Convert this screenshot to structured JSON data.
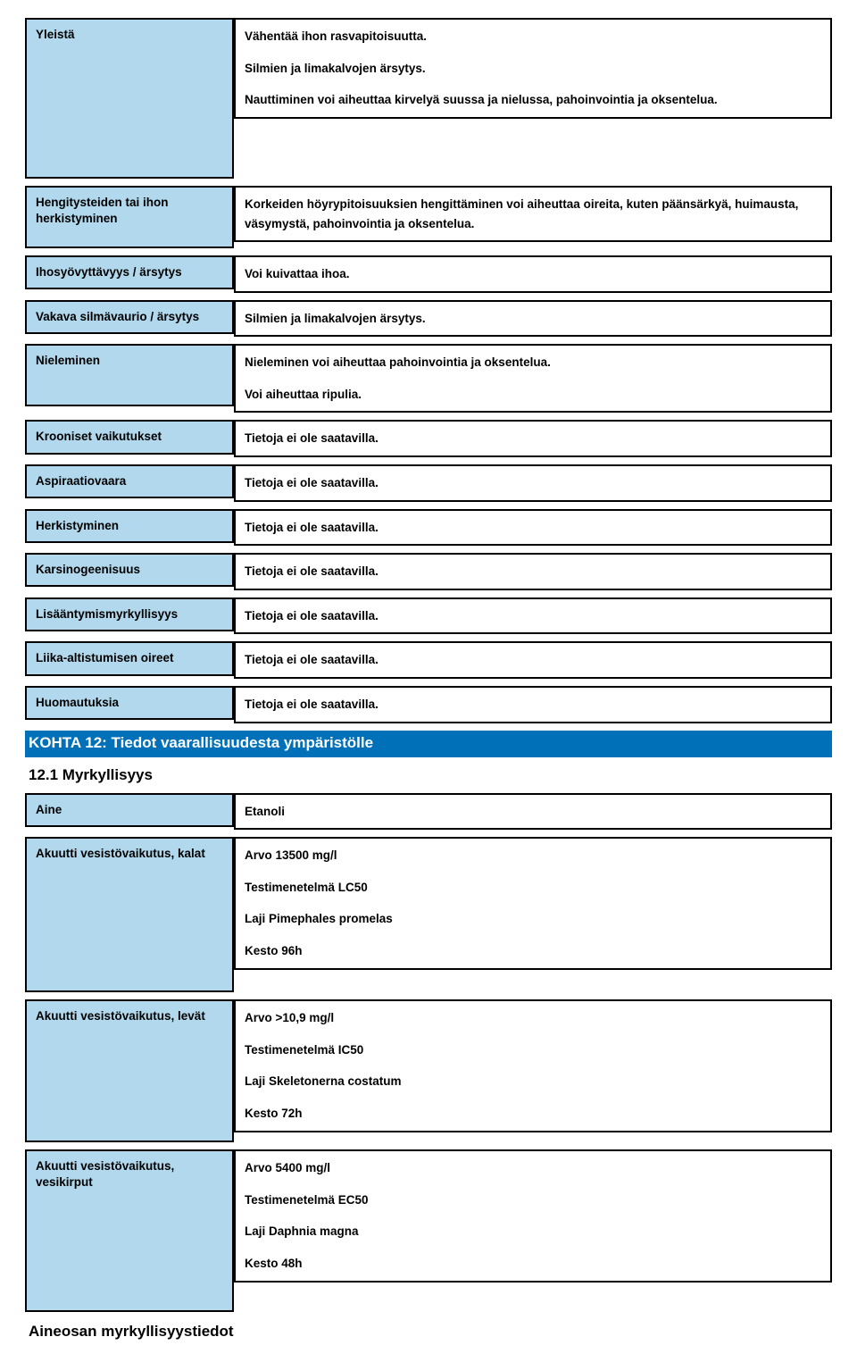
{
  "top_rows": [
    {
      "label": "Yleistä",
      "paragraphs": [
        "Vähentää ihon rasvapitoisuutta.",
        "Silmien ja limakalvojen ärsytys.",
        "Nauttiminen voi aiheuttaa kirvelyä suussa ja nielussa, pahoinvointia ja oksentelua."
      ],
      "tall": "tall-1"
    },
    {
      "label": "Hengitysteiden tai ihon herkistyminen",
      "paragraphs": [
        "Korkeiden höyrypitoisuuksien hengittäminen voi aiheuttaa oireita, kuten päänsärkyä, huimausta, väsymystä, pahoinvointia ja oksentelua."
      ],
      "tall": "tall-2"
    },
    {
      "label": "Ihosyövyttävyys / ärsytys",
      "paragraphs": [
        "Voi kuivattaa ihoa."
      ]
    },
    {
      "label": "Vakava silmävaurio / ärsytys",
      "paragraphs": [
        "Silmien ja limakalvojen ärsytys."
      ]
    },
    {
      "label": "Nieleminen",
      "paragraphs": [
        "Nieleminen voi aiheuttaa pahoinvointia ja oksentelua.",
        "Voi aiheuttaa ripulia."
      ],
      "tall": "tall-2"
    },
    {
      "label": "Krooniset vaikutukset",
      "paragraphs": [
        "Tietoja ei ole saatavilla."
      ]
    },
    {
      "label": "Aspiraatiovaara",
      "paragraphs": [
        "Tietoja ei ole saatavilla."
      ]
    },
    {
      "label": "Herkistyminen",
      "paragraphs": [
        "Tietoja ei ole saatavilla."
      ]
    },
    {
      "label": "Karsinogeenisuus",
      "paragraphs": [
        "Tietoja ei ole saatavilla."
      ]
    },
    {
      "label": "Lisääntymismyrkyllisyys",
      "paragraphs": [
        "Tietoja ei ole saatavilla."
      ]
    },
    {
      "label": "Liika-altistumisen oireet",
      "paragraphs": [
        "Tietoja ei ole saatavilla."
      ]
    },
    {
      "label": "Huomautuksia",
      "paragraphs": [
        "Tietoja ei ole saatavilla."
      ]
    }
  ],
  "section12": {
    "header": "KOHTA 12: Tiedot vaarallisuudesta ympäristölle",
    "sub": "12.1 Myrkyllisyys"
  },
  "eco_rows": [
    {
      "label": "Aine",
      "lines": [
        "Etanoli"
      ]
    },
    {
      "label": "Akuutti vesistövaikutus, kalat",
      "lines": [
        "Arvo  13500 mg/l",
        "Testimenetelmä      LC50",
        "Laji  Pimephales promelas",
        "Kesto  96h"
      ],
      "tall": "tall-3"
    },
    {
      "label": "Akuutti vesistövaikutus, levät",
      "lines": [
        "Arvo  >10,9 mg/l",
        "Testimenetelmä      IC50",
        "Laji  Skeletonerna costatum",
        "Kesto  72h"
      ],
      "tall": "tall-4"
    },
    {
      "label": "Akuutti vesistövaikutus, vesikirput",
      "lines": [
        "Arvo  5400 mg/l",
        "Testimenetelmä      EC50",
        "Laji  Daphnia magna",
        "Kesto  48h"
      ],
      "tall": "tall-5"
    }
  ],
  "footer": {
    "h1": "Aineosan myrkyllisyystiedot"
  }
}
